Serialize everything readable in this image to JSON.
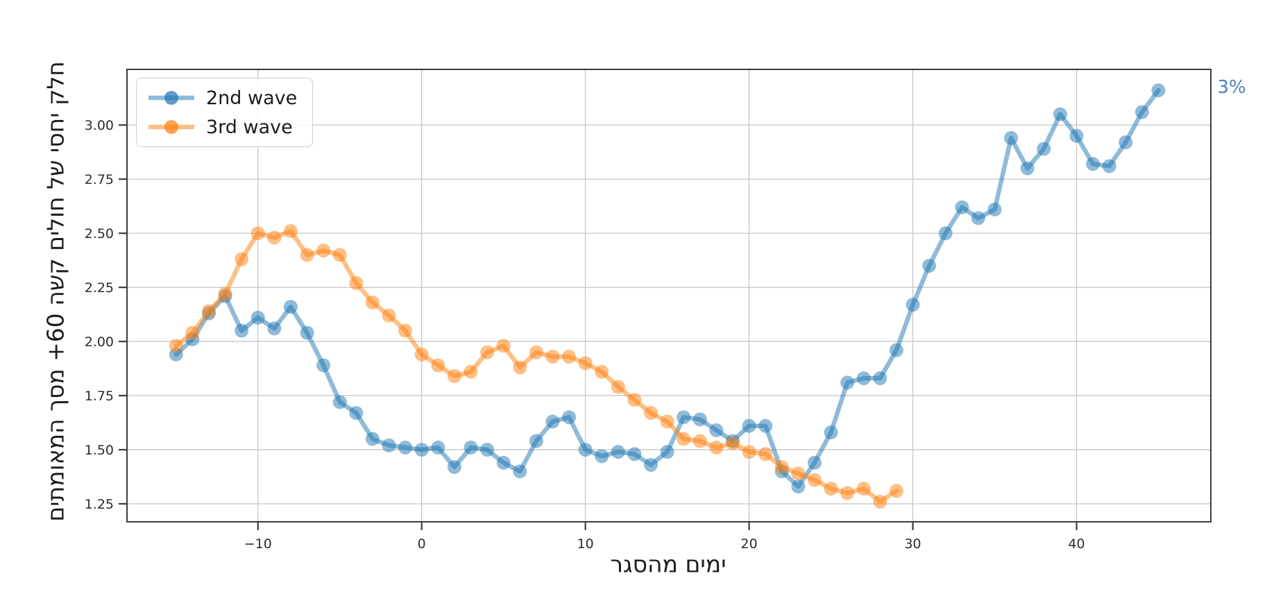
{
  "chart_data": {
    "type": "line",
    "title": "",
    "xlabel": "ימים מהסגר",
    "ylabel": "חלק יחסי של חולים קשה 60+ מסך המאומתים",
    "xlim": [
      -18.0,
      48.2
    ],
    "ylim": [
      1.167,
      3.257
    ],
    "xticks": [
      -10,
      0,
      10,
      20,
      30,
      40
    ],
    "yticks": [
      1.25,
      1.5,
      1.75,
      2.0,
      2.25,
      2.5,
      2.75,
      3.0
    ],
    "grid": true,
    "grid_color": "#c9c9c9",
    "spine_color": "#3b3b3b",
    "tick_label_color": "#2b2b2b",
    "legend_position": "upper left",
    "annotation": {
      "text": "3%",
      "color": "#4a7fc0",
      "x": 48.6,
      "y": 3.175
    },
    "series": [
      {
        "name": "2nd wave",
        "color": "#1f77b4",
        "line_alpha": 0.5,
        "marker_alpha": 0.5,
        "points": [
          [
            -15,
            1.94
          ],
          [
            -14,
            2.01
          ],
          [
            -13,
            2.13
          ],
          [
            -12,
            2.21
          ],
          [
            -11,
            2.05
          ],
          [
            -10,
            2.11
          ],
          [
            -9,
            2.06
          ],
          [
            -8,
            2.16
          ],
          [
            -7,
            2.04
          ],
          [
            -6,
            1.89
          ],
          [
            -5,
            1.72
          ],
          [
            -4,
            1.67
          ],
          [
            -3,
            1.55
          ],
          [
            -2,
            1.52
          ],
          [
            -1,
            1.51
          ],
          [
            0,
            1.5
          ],
          [
            1,
            1.51
          ],
          [
            2,
            1.42
          ],
          [
            3,
            1.51
          ],
          [
            4,
            1.5
          ],
          [
            5,
            1.44
          ],
          [
            6,
            1.4
          ],
          [
            7,
            1.54
          ],
          [
            8,
            1.63
          ],
          [
            9,
            1.65
          ],
          [
            10,
            1.5
          ],
          [
            11,
            1.47
          ],
          [
            12,
            1.49
          ],
          [
            13,
            1.48
          ],
          [
            14,
            1.43
          ],
          [
            15,
            1.49
          ],
          [
            16,
            1.65
          ],
          [
            17,
            1.64
          ],
          [
            18,
            1.59
          ],
          [
            19,
            1.54
          ],
          [
            20,
            1.61
          ],
          [
            21,
            1.61
          ],
          [
            22,
            1.4
          ],
          [
            23,
            1.33
          ],
          [
            24,
            1.44
          ],
          [
            25,
            1.58
          ],
          [
            26,
            1.81
          ],
          [
            27,
            1.83
          ],
          [
            28,
            1.83
          ],
          [
            29,
            1.96
          ],
          [
            30,
            2.17
          ],
          [
            31,
            2.35
          ],
          [
            32,
            2.5
          ],
          [
            33,
            2.62
          ],
          [
            34,
            2.57
          ],
          [
            35,
            2.61
          ],
          [
            36,
            2.94
          ],
          [
            37,
            2.8
          ],
          [
            38,
            2.89
          ],
          [
            39,
            3.05
          ],
          [
            40,
            2.95
          ],
          [
            41,
            2.82
          ],
          [
            42,
            2.81
          ],
          [
            43,
            2.92
          ],
          [
            44,
            3.06
          ],
          [
            45,
            3.16
          ]
        ]
      },
      {
        "name": "3rd wave",
        "color": "#ff7f0e",
        "line_alpha": 0.5,
        "marker_alpha": 0.5,
        "points": [
          [
            -15,
            1.98
          ],
          [
            -14,
            2.04
          ],
          [
            -13,
            2.14
          ],
          [
            -12,
            2.22
          ],
          [
            -11,
            2.38
          ],
          [
            -10,
            2.5
          ],
          [
            -9,
            2.48
          ],
          [
            -8,
            2.51
          ],
          [
            -7,
            2.4
          ],
          [
            -6,
            2.42
          ],
          [
            -5,
            2.4
          ],
          [
            -4,
            2.27
          ],
          [
            -3,
            2.18
          ],
          [
            -2,
            2.12
          ],
          [
            -1,
            2.05
          ],
          [
            0,
            1.94
          ],
          [
            1,
            1.89
          ],
          [
            2,
            1.84
          ],
          [
            3,
            1.86
          ],
          [
            4,
            1.95
          ],
          [
            5,
            1.98
          ],
          [
            6,
            1.88
          ],
          [
            7,
            1.95
          ],
          [
            8,
            1.93
          ],
          [
            9,
            1.93
          ],
          [
            10,
            1.9
          ],
          [
            11,
            1.86
          ],
          [
            12,
            1.79
          ],
          [
            13,
            1.73
          ],
          [
            14,
            1.67
          ],
          [
            15,
            1.63
          ],
          [
            16,
            1.55
          ],
          [
            17,
            1.54
          ],
          [
            18,
            1.51
          ],
          [
            19,
            1.53
          ],
          [
            20,
            1.49
          ],
          [
            21,
            1.48
          ],
          [
            22,
            1.42
          ],
          [
            23,
            1.39
          ],
          [
            24,
            1.36
          ],
          [
            25,
            1.32
          ],
          [
            26,
            1.3
          ],
          [
            27,
            1.32
          ],
          [
            28,
            1.26
          ],
          [
            29,
            1.31
          ]
        ]
      }
    ]
  }
}
